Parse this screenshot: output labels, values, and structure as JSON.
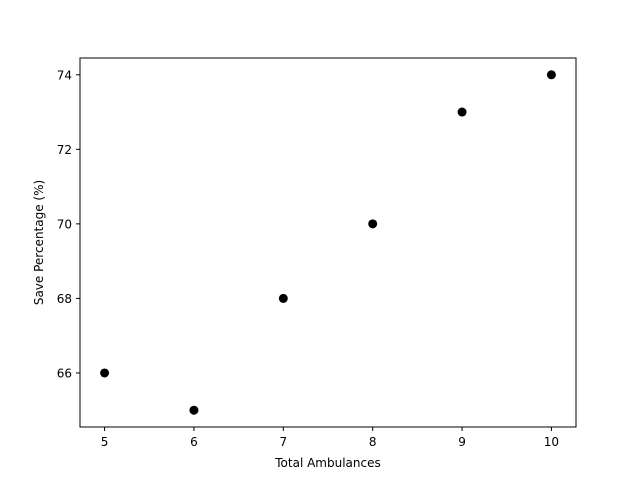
{
  "chart_data": {
    "type": "scatter",
    "title": "",
    "xlabel": "Total Ambulances",
    "ylabel": "Save Percentage (%)",
    "x": [
      5,
      6,
      7,
      8,
      9,
      10
    ],
    "y": [
      66,
      65,
      68,
      70,
      73,
      74
    ],
    "xlim": [
      4.725,
      10.275
    ],
    "ylim": [
      64.55,
      74.45
    ],
    "xticks": [
      5,
      6,
      7,
      8,
      9,
      10
    ],
    "yticks": [
      66,
      68,
      70,
      72,
      74
    ],
    "marker_color": "#000000",
    "grid": false,
    "legend": "none"
  }
}
